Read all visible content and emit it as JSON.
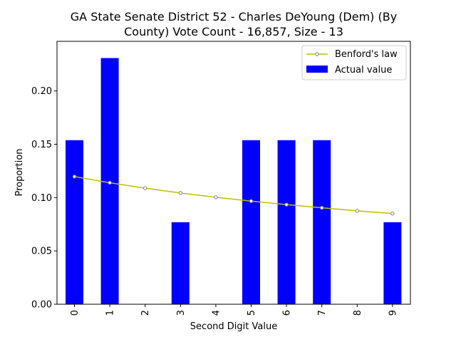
{
  "chart_data": {
    "type": "bar",
    "title_line1": "GA State Senate District 52 - Charles DeYoung (Dem) (By",
    "title_line2": "County) Vote Count - 16,857, Size - 13",
    "xlabel": "Second Digit Value",
    "ylabel": "Proportion",
    "categories": [
      "0",
      "1",
      "2",
      "3",
      "4",
      "5",
      "6",
      "7",
      "8",
      "9"
    ],
    "ylim": [
      0,
      0.2465
    ],
    "yticks": [
      0.0,
      0.05,
      0.1,
      0.15,
      0.2
    ],
    "ytick_labels": [
      "0.00",
      "0.05",
      "0.10",
      "0.15",
      "0.20"
    ],
    "series": [
      {
        "name": "Actual value",
        "kind": "bar",
        "color": "#0000ff",
        "values": [
          0.1538,
          0.2308,
          0.0,
          0.0769,
          0.0,
          0.1538,
          0.1538,
          0.1538,
          0.0,
          0.0769
        ]
      },
      {
        "name": "Benford's law",
        "kind": "line",
        "color": "#bfbf00",
        "marker_color": "#808080",
        "values": [
          0.1197,
          0.1139,
          0.1088,
          0.1043,
          0.1003,
          0.0967,
          0.0934,
          0.0904,
          0.0876,
          0.085
        ]
      }
    ],
    "legend": {
      "placement": "top-right",
      "entries": [
        "Benford's law",
        "Actual value"
      ]
    },
    "grid": false
  }
}
